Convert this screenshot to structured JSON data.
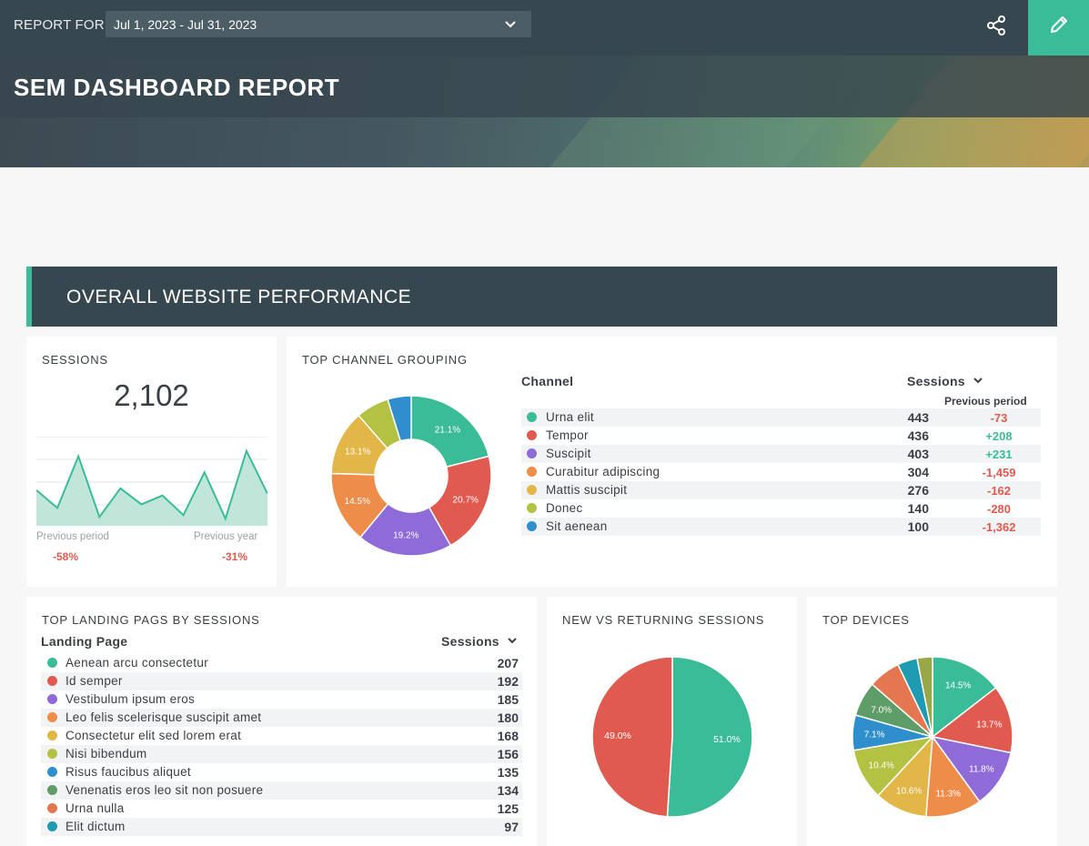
{
  "header": {
    "report_for_label": "REPORT FOR",
    "date_range": "Jul 1, 2023 - Jul 31, 2023",
    "title": "SEM DASHBOARD REPORT"
  },
  "section": {
    "title": "OVERALL WEBSITE PERFORMANCE"
  },
  "sessions": {
    "title": "SESSIONS",
    "value": "2,102",
    "prev_period_label": "Previous period",
    "prev_period_value": "-58%",
    "prev_year_label": "Previous year",
    "prev_year_value": "-31%",
    "sparkline": [
      40,
      20,
      78,
      10,
      42,
      24,
      34,
      12,
      60,
      8,
      84,
      36
    ]
  },
  "channels": {
    "title": "TOP CHANNEL GROUPING",
    "col_channel": "Channel",
    "col_sessions": "Sessions",
    "col_prev": "Previous period",
    "rows": [
      {
        "label": "Urna elit",
        "value": "443",
        "change": "-73",
        "color": "#3bbc98"
      },
      {
        "label": "Tempor",
        "value": "436",
        "change": "+208",
        "color": "#e05a4f"
      },
      {
        "label": "Suscipit",
        "value": "403",
        "change": "+231",
        "color": "#8e6bd8"
      },
      {
        "label": "Curabitur adipiscing",
        "value": "304",
        "change": "-1,459",
        "color": "#ee8c4a"
      },
      {
        "label": "Mattis suscipit",
        "value": "276",
        "change": "-162",
        "color": "#e3b648"
      },
      {
        "label": "Donec",
        "value": "140",
        "change": "-280",
        "color": "#b3c243"
      },
      {
        "label": "Sit aenean",
        "value": "100",
        "change": "-1,362",
        "color": "#2f8fcc"
      }
    ],
    "slice_labels": [
      "21.1%",
      "20.7%",
      "19.2%",
      "14.5%",
      "13.1%",
      "",
      ""
    ]
  },
  "landing": {
    "title": "TOP LANDING PAGS BY SESSIONS",
    "col_page": "Landing Page",
    "col_sessions": "Sessions",
    "rows": [
      {
        "label": "Aenean arcu consectetur",
        "value": "207",
        "color": "#3bbc98"
      },
      {
        "label": "Id semper",
        "value": "192",
        "color": "#e05a4f"
      },
      {
        "label": "Vestibulum ipsum eros",
        "value": "185",
        "color": "#8e6bd8"
      },
      {
        "label": "Leo felis scelerisque suscipit amet",
        "value": "180",
        "color": "#ee8c4a"
      },
      {
        "label": "Consectetur elit sed lorem erat",
        "value": "168",
        "color": "#e3b648"
      },
      {
        "label": "Nisi bibendum",
        "value": "156",
        "color": "#b3c243"
      },
      {
        "label": "Risus faucibus aliquet",
        "value": "135",
        "color": "#2f8fcc"
      },
      {
        "label": "Venenatis eros leo sit non posuere",
        "value": "134",
        "color": "#5e9c68"
      },
      {
        "label": "Urna nulla",
        "value": "125",
        "color": "#e4774f"
      },
      {
        "label": "Elit dictum",
        "value": "97",
        "color": "#1e9bb0"
      }
    ]
  },
  "new_vs_returning": {
    "title": "NEW VS RETURNING SESSIONS",
    "slices": [
      {
        "value": 51.0,
        "label": "51.0%",
        "color": "#3bbc98"
      },
      {
        "value": 49.0,
        "label": "49.0%",
        "color": "#e05a4f"
      }
    ]
  },
  "devices": {
    "title": "TOP DEVICES",
    "slices": [
      {
        "value": 14.5,
        "label": "14.5%",
        "color": "#3bbc98"
      },
      {
        "value": 13.7,
        "label": "13.7%",
        "color": "#e05a4f"
      },
      {
        "value": 11.8,
        "label": "11.8%",
        "color": "#8e6bd8"
      },
      {
        "value": 11.3,
        "label": "11.3%",
        "color": "#ee8c4a"
      },
      {
        "value": 10.6,
        "label": "10.6%",
        "color": "#e3b648"
      },
      {
        "value": 10.4,
        "label": "10.4%",
        "color": "#b3c243"
      },
      {
        "value": 7.1,
        "label": "7.1%",
        "color": "#2f8fcc"
      },
      {
        "value": 7.0,
        "label": "7.0%",
        "color": "#5e9c68"
      },
      {
        "value": 6.5,
        "label": "",
        "color": "#e4774f"
      },
      {
        "value": 4.0,
        "label": "",
        "color": "#1e9bb0"
      },
      {
        "value": 3.1,
        "label": "",
        "color": "#98a846"
      }
    ]
  }
}
